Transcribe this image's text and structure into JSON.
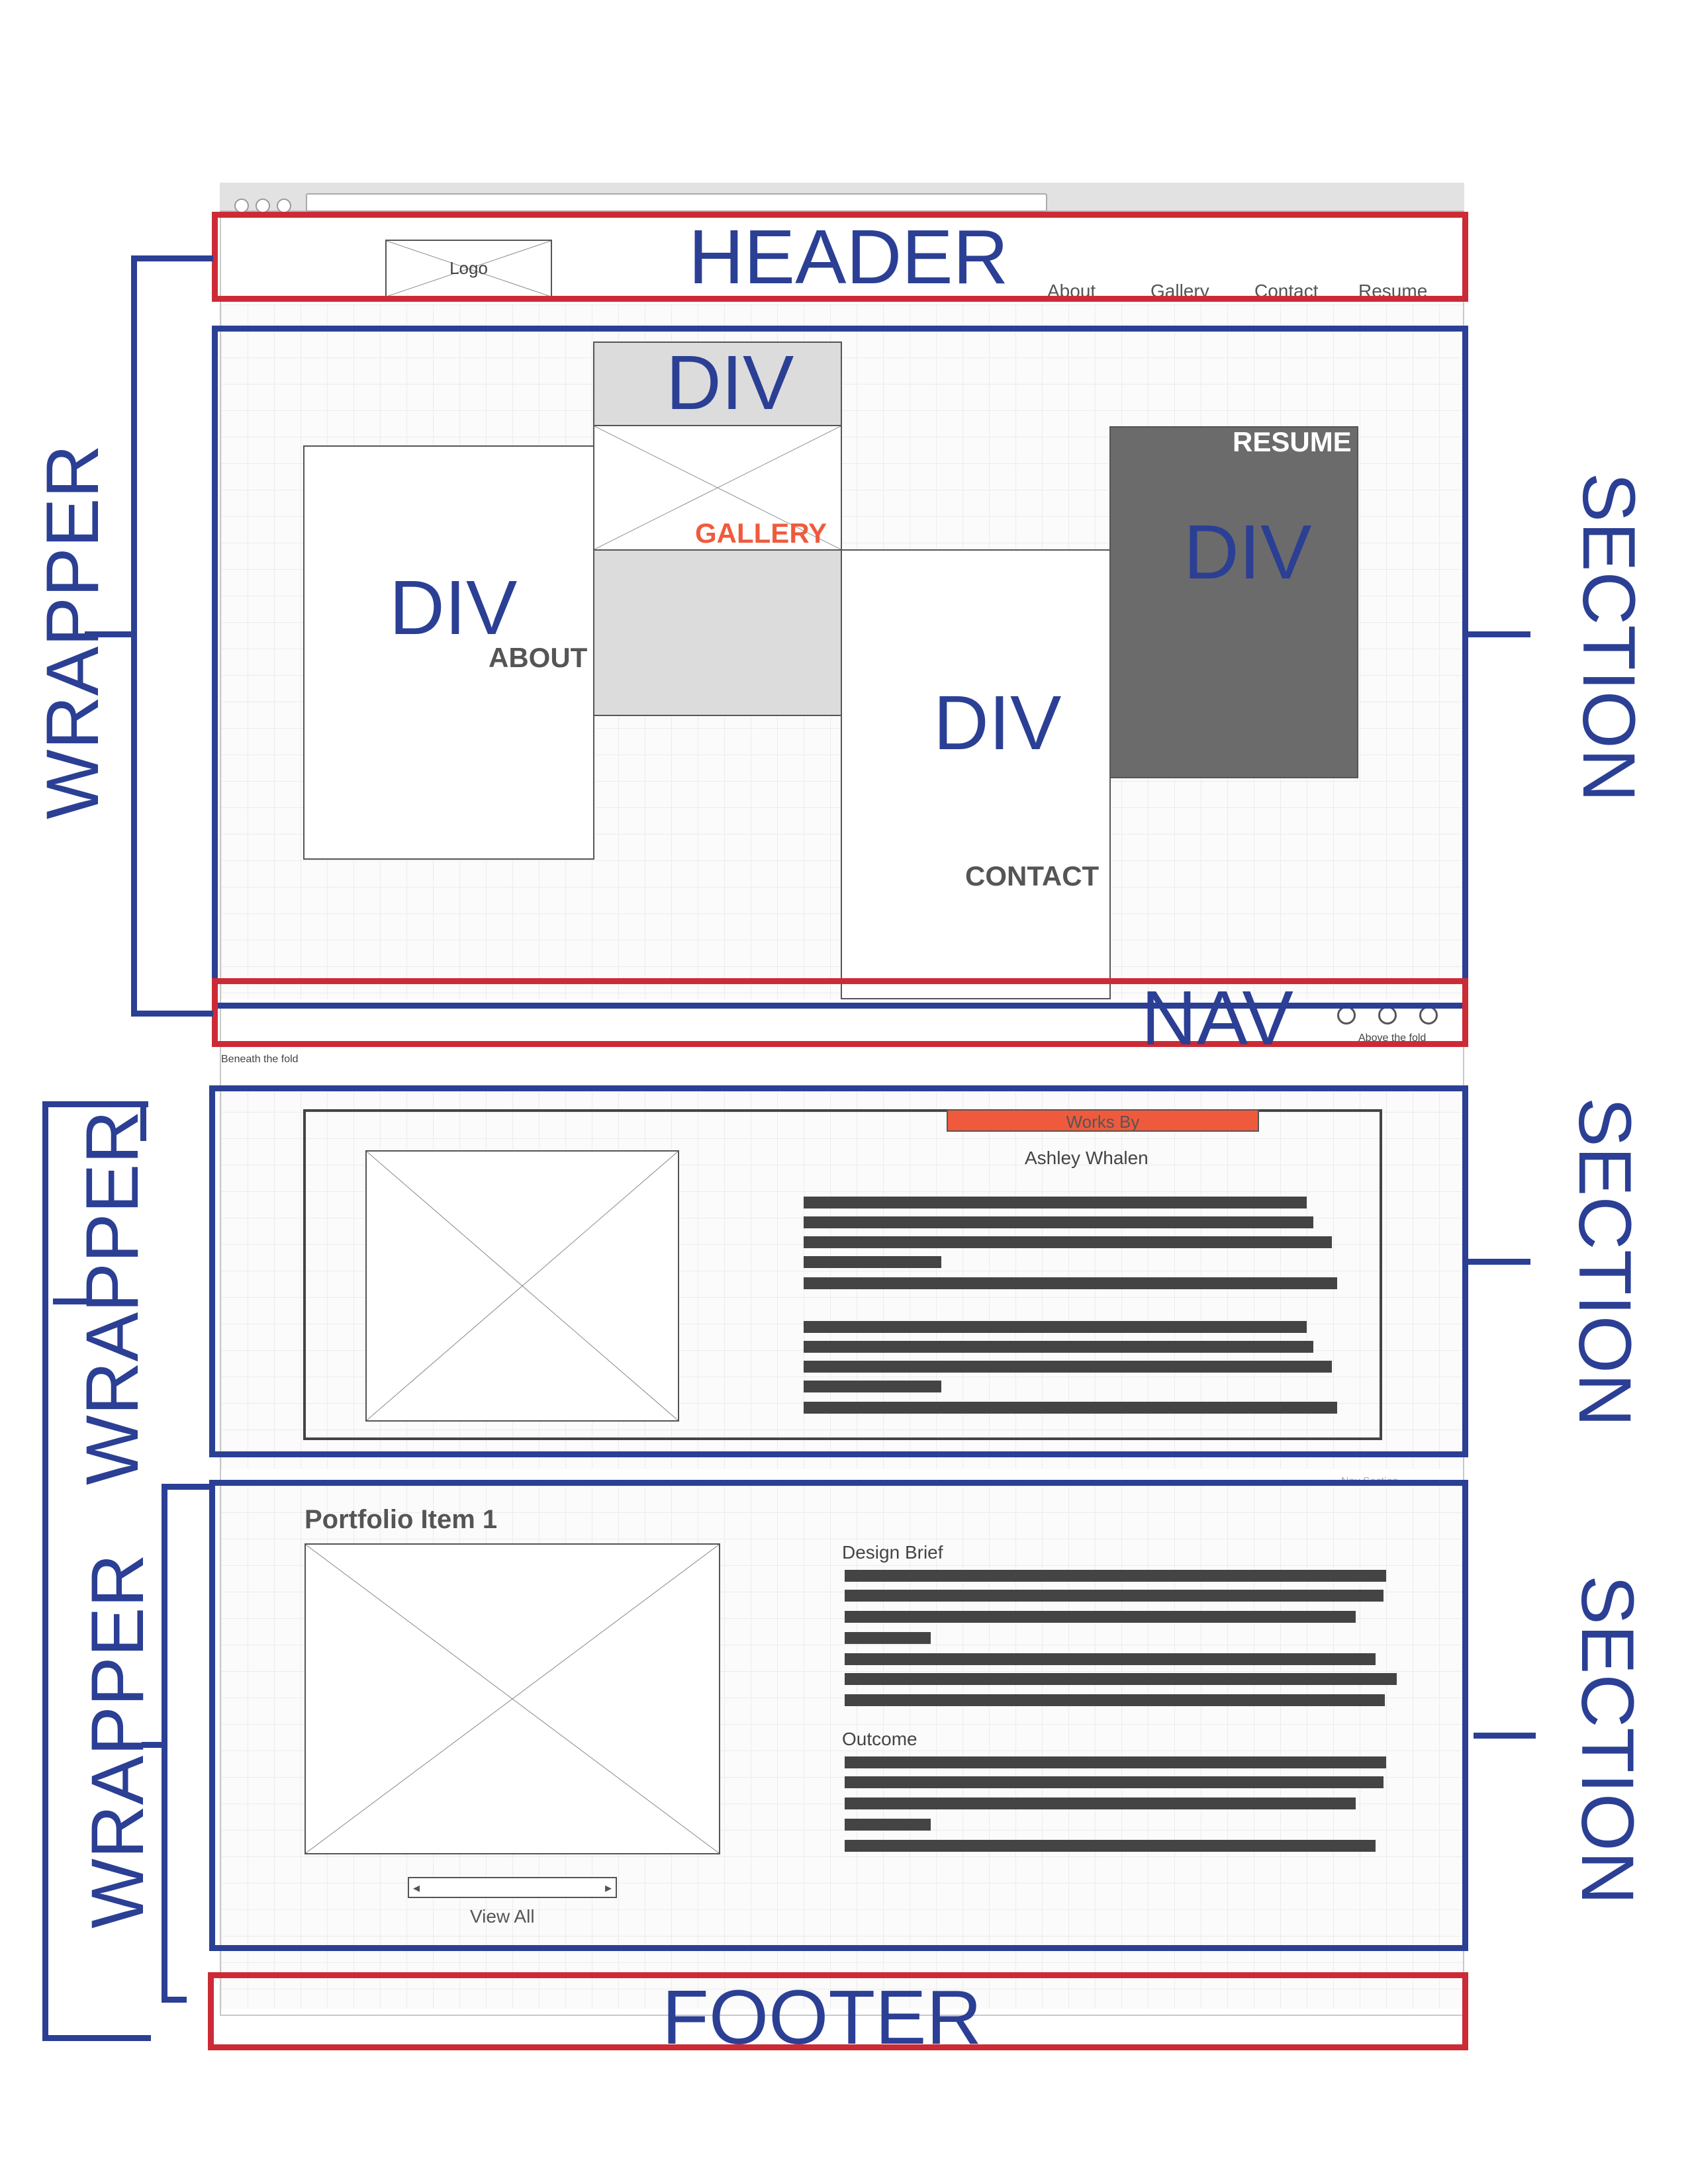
{
  "mockup": {
    "logo": "Logo",
    "nav": [
      "About",
      "Gallery",
      "Contact",
      "Resume"
    ],
    "tiles": {
      "about": "ABOUT",
      "gallery": "GALLERY",
      "contact": "CONTACT",
      "resume": "RESUME"
    },
    "above_fold": "Above the fold",
    "beneath_fold": "Beneath the fold",
    "works_by": "Works By",
    "author": "Ashley Whalen",
    "portfolio_title": "Portfolio Item 1",
    "design_brief": "Design Brief",
    "outcome": "Outcome",
    "view_all": "View All",
    "view_all_arrows": {
      "left": "◂",
      "right": "▸"
    },
    "faint_label": "Nav Section"
  },
  "annotations": {
    "header": "HEADER",
    "nav": "NAV",
    "footer": "FOOTER",
    "div": "DIV",
    "section": "SECTION",
    "wrapper": "WRAPPER"
  },
  "colors": {
    "annotation_blue": "#2b3f94",
    "annotation_red": "#cc2b36",
    "accent_orange": "#f05a3c",
    "resume_gray": "#6b6b6b",
    "gallery_gray": "#dcdcdc",
    "text_bar": "#444444"
  }
}
